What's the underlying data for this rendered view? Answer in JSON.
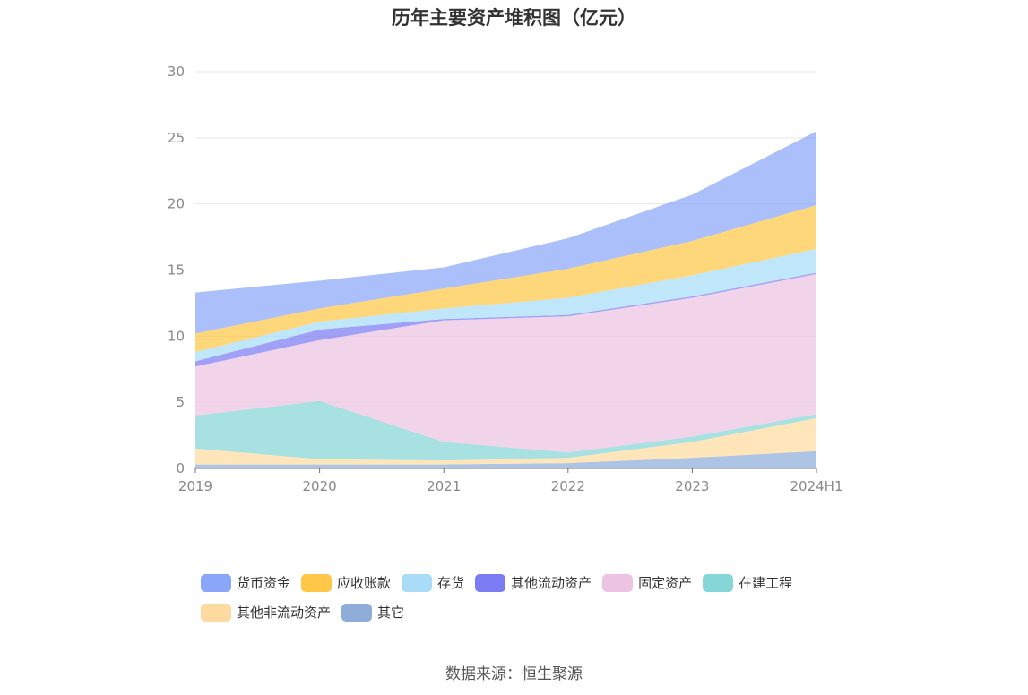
{
  "chart_data": {
    "type": "area",
    "title": "历年主要资产堆积图（亿元）",
    "stacked": true,
    "x": [
      "2019",
      "2020",
      "2021",
      "2022",
      "2023",
      "2024H1"
    ],
    "ylim": [
      0,
      30
    ],
    "yticks": [
      0,
      5,
      10,
      15,
      20,
      25,
      30
    ],
    "grid": true,
    "legend_position": "bottom",
    "series": [
      {
        "name": "其它",
        "color": "#8fadd9",
        "values": [
          0.3,
          0.3,
          0.3,
          0.4,
          0.8,
          1.3
        ]
      },
      {
        "name": "其他非流动资产",
        "color": "#fddba0",
        "values": [
          1.2,
          0.4,
          0.3,
          0.4,
          1.2,
          2.5
        ]
      },
      {
        "name": "在建工程",
        "color": "#85d6d6",
        "values": [
          2.5,
          4.4,
          1.4,
          0.4,
          0.4,
          0.3
        ]
      },
      {
        "name": "固定资产",
        "color": "#ecc3e2",
        "values": [
          3.7,
          4.6,
          9.2,
          10.3,
          10.5,
          10.6
        ]
      },
      {
        "name": "其他流动资产",
        "color": "#7b7cf4",
        "values": [
          0.4,
          0.8,
          0.1,
          0.1,
          0.1,
          0.1
        ]
      },
      {
        "name": "存货",
        "color": "#a8dcf7",
        "values": [
          0.7,
          0.6,
          0.8,
          1.3,
          1.6,
          1.8
        ]
      },
      {
        "name": "应收账款",
        "color": "#fec747",
        "values": [
          1.4,
          1.0,
          1.5,
          2.2,
          2.6,
          3.3
        ]
      },
      {
        "name": "货币资金",
        "color": "#8aa6f8",
        "values": [
          3.1,
          2.1,
          1.6,
          2.3,
          3.5,
          5.6
        ]
      }
    ]
  },
  "legend_order": [
    "货币资金",
    "应收账款",
    "存货",
    "其他流动资产",
    "固定资产",
    "在建工程",
    "其他非流动资产",
    "其它"
  ],
  "source": "数据来源：恒生聚源"
}
